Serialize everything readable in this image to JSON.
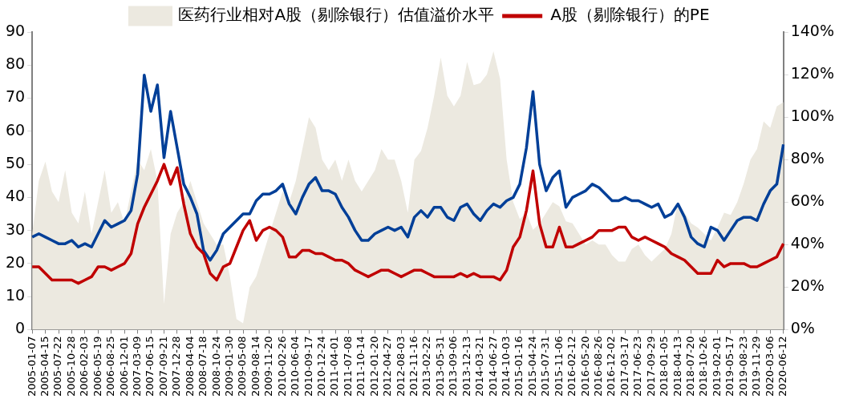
{
  "chart_data": {
    "type": "line",
    "legend": "top",
    "marker": "none",
    "line_style": "solid",
    "categories": [
      "2005-01-07",
      null,
      "2005-04-15",
      null,
      "2005-07-22",
      null,
      "2005-10-28",
      null,
      "2006-02-03",
      null,
      "2006-05-19",
      null,
      "2006-08-25",
      null,
      "2006-12-01",
      null,
      "2007-03-09",
      null,
      "2007-06-15",
      null,
      "2007-09-21",
      null,
      "2007-12-28",
      null,
      "2008-04-04",
      null,
      "2008-07-18",
      null,
      "2008-10-24",
      null,
      "2009-01-30",
      null,
      "2009-05-08",
      null,
      "2009-08-14",
      null,
      "2009-11-20",
      null,
      "2010-02-26",
      null,
      "2010-06-04",
      null,
      "2010-09-17",
      null,
      "2010-12-24",
      null,
      "2011-04-01",
      null,
      "2011-07-08",
      null,
      "2011-10-14",
      null,
      "2012-01-20",
      null,
      "2012-04-27",
      null,
      "2012-08-03",
      null,
      "2012-11-16",
      null,
      "2013-02-22",
      null,
      "2013-05-31",
      null,
      "2013-09-06",
      null,
      "2013-12-13",
      null,
      "2014-03-21",
      null,
      "2014-06-27",
      null,
      "2014-10-03",
      null,
      "2015-01-16",
      null,
      "2015-04-24",
      null,
      "2015-07-31",
      null,
      "2015-11-06",
      null,
      "2016-02-12",
      null,
      "2016-05-20",
      null,
      "2016-08-26",
      null,
      "2016-12-02",
      null,
      "2017-03-17",
      null,
      "2017-06-23",
      null,
      "2017-09-29",
      null,
      "2018-01-05",
      null,
      "2018-04-13",
      null,
      "2018-07-20",
      null,
      "2018-10-26",
      null,
      "2019-02-01",
      null,
      "2019-05-17",
      null,
      "2019-08-23",
      null,
      "2019-11-29",
      null,
      "2020-03-06",
      null,
      "2020-06-12"
    ],
    "ylim": [
      0,
      90
    ],
    "yticks": [
      0,
      10,
      20,
      30,
      40,
      50,
      60,
      70,
      80,
      90
    ],
    "y2lim": [
      0,
      140
    ],
    "y2ticks": [
      {
        "value": 0,
        "label": "0%"
      },
      {
        "value": 20,
        "label": "20%"
      },
      {
        "value": 40,
        "label": "40%"
      },
      {
        "value": 60,
        "label": "60%"
      },
      {
        "value": 80,
        "label": "80%"
      },
      {
        "value": 100,
        "label": "100%"
      },
      {
        "value": 120,
        "label": "120%"
      },
      {
        "value": 140,
        "label": "140%"
      }
    ],
    "series": [
      {
        "type": "area",
        "axis": "y2",
        "name": "医药行业相对A股（剔除银行）估值溢价水平",
        "color": "#ece9e0",
        "values": [
          45,
          70,
          79,
          65,
          60,
          75,
          55,
          50,
          65,
          45,
          60,
          75,
          55,
          60,
          50,
          65,
          80,
          75,
          85,
          70,
          12,
          45,
          55,
          60,
          70,
          60,
          50,
          45,
          40,
          40,
          25,
          5,
          3,
          20,
          25,
          35,
          45,
          55,
          65,
          60,
          70,
          85,
          100,
          95,
          80,
          75,
          80,
          70,
          80,
          70,
          65,
          70,
          75,
          85,
          80,
          80,
          70,
          55,
          80,
          84,
          95,
          110,
          128,
          110,
          105,
          110,
          126,
          115,
          116,
          120,
          131,
          118,
          80,
          60,
          52,
          55,
          47,
          50,
          55,
          60,
          58,
          51,
          50,
          45,
          40,
          42,
          40,
          40,
          35,
          32,
          32,
          38,
          40,
          35,
          32,
          35,
          38,
          45,
          60,
          55,
          50,
          48,
          45,
          42,
          48,
          55,
          54,
          60,
          69,
          80,
          85,
          98,
          95,
          105,
          107
        ]
      },
      {
        "color": "#003f98",
        "values": [
          28,
          29,
          28,
          27,
          26,
          26,
          27,
          25,
          26,
          25,
          29,
          33,
          31,
          32,
          33,
          36,
          47,
          77,
          66,
          74,
          52,
          66,
          55,
          44,
          40,
          35,
          24,
          21,
          24,
          29,
          31,
          33,
          35,
          35,
          39,
          41,
          41,
          42,
          44,
          38,
          35,
          40,
          44,
          46,
          42,
          42,
          41,
          37,
          34,
          30,
          27,
          27,
          29,
          30,
          31,
          30,
          31,
          28,
          34,
          36,
          34,
          37,
          37,
          34,
          33,
          37,
          38,
          35,
          33,
          36,
          38,
          37,
          39,
          40,
          44,
          55,
          72,
          50,
          42,
          46,
          48,
          37,
          40,
          41,
          42,
          44,
          43,
          41,
          39,
          39,
          40,
          39,
          39,
          38,
          37,
          38,
          34,
          35,
          38,
          34,
          28,
          26,
          25,
          31,
          30,
          27,
          30,
          33,
          34,
          34,
          33,
          38,
          42,
          44,
          56
        ]
      },
      {
        "name": "A股（剔除银行）的PE",
        "color": "#c00000",
        "values": [
          19,
          19,
          17,
          15,
          15,
          15,
          15,
          14,
          15,
          16,
          19,
          19,
          18,
          19,
          20,
          23,
          32,
          37,
          41,
          45,
          50,
          44,
          49,
          38,
          29,
          25,
          23,
          17,
          15,
          19,
          20,
          25,
          30,
          33,
          27,
          30,
          31,
          30,
          28,
          22,
          22,
          24,
          24,
          23,
          23,
          22,
          21,
          21,
          20,
          18,
          17,
          16,
          17,
          18,
          18,
          17,
          16,
          17,
          18,
          18,
          17,
          16,
          16,
          16,
          16,
          17,
          16,
          17,
          16,
          16,
          16,
          15,
          18,
          25,
          28,
          36,
          48,
          32,
          25,
          25,
          31,
          25,
          25,
          26,
          27,
          28,
          30,
          30,
          30,
          31,
          31,
          28,
          27,
          28,
          27,
          26,
          25,
          23,
          22,
          21,
          19,
          17,
          17,
          17,
          21,
          19,
          20,
          20,
          20,
          19,
          19,
          20,
          21,
          22,
          26
        ]
      }
    ]
  }
}
